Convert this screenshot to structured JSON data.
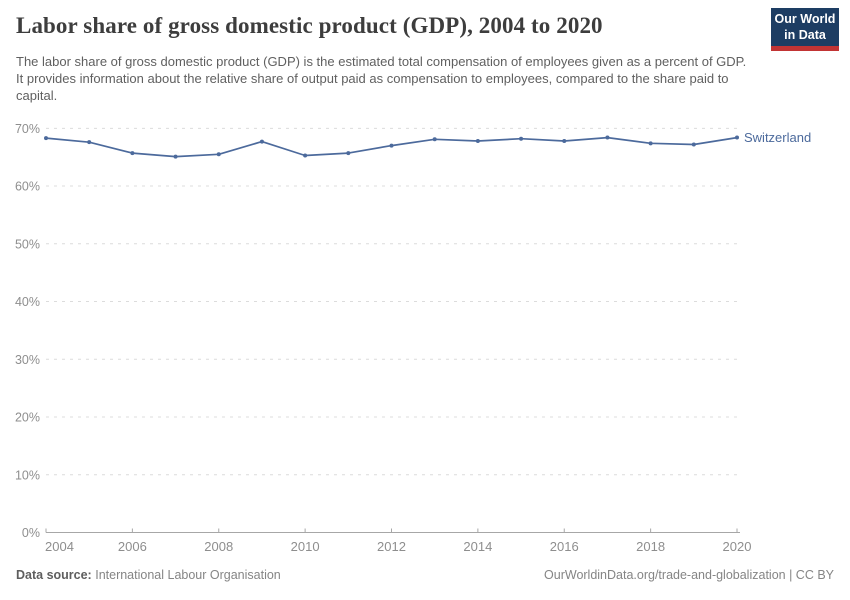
{
  "header": {
    "title": "Labor share of gross domestic product (GDP), 2004 to 2020",
    "subtitle": "The labor share of gross domestic product (GDP) is the estimated total compensation of employees given as a percent of GDP. It provides information about the relative share of output paid as compensation to employees, compared to the share paid to capital.",
    "logo": {
      "line1": "Our World",
      "line2": "in Data",
      "bg_color": "#1d3d63",
      "accent_color": "#c23434"
    }
  },
  "chart_data": {
    "type": "line",
    "title": "Labor share of gross domestic product (GDP), 2004 to 2020",
    "xlabel": "",
    "ylabel": "",
    "x": [
      2004,
      2005,
      2006,
      2007,
      2008,
      2009,
      2010,
      2011,
      2012,
      2013,
      2014,
      2015,
      2016,
      2017,
      2018,
      2019,
      2020
    ],
    "series": [
      {
        "name": "Switzerland",
        "color": "#4c6a9c",
        "values": [
          68.3,
          67.6,
          65.7,
          65.1,
          65.5,
          67.7,
          65.3,
          65.7,
          67.0,
          68.1,
          67.8,
          68.2,
          67.8,
          68.4,
          67.4,
          67.2,
          68.4
        ]
      }
    ],
    "ylim": [
      0,
      70
    ],
    "yticks": [
      0,
      10,
      20,
      30,
      40,
      50,
      60,
      70
    ],
    "ytick_suffix": "%",
    "xticks": [
      2004,
      2006,
      2008,
      2010,
      2012,
      2014,
      2016,
      2018,
      2020
    ],
    "grid": "horizontal-dashed",
    "legend_position": "line-end-label",
    "colors": {
      "grid": "#dcdcdc",
      "axis": "#a7a7a7",
      "tick_text": "#8e8e8e"
    }
  },
  "footer": {
    "datasource_label": "Data source:",
    "datasource_value": "International Labour Organisation",
    "rights": "OurWorldinData.org/trade-and-globalization | CC BY"
  }
}
